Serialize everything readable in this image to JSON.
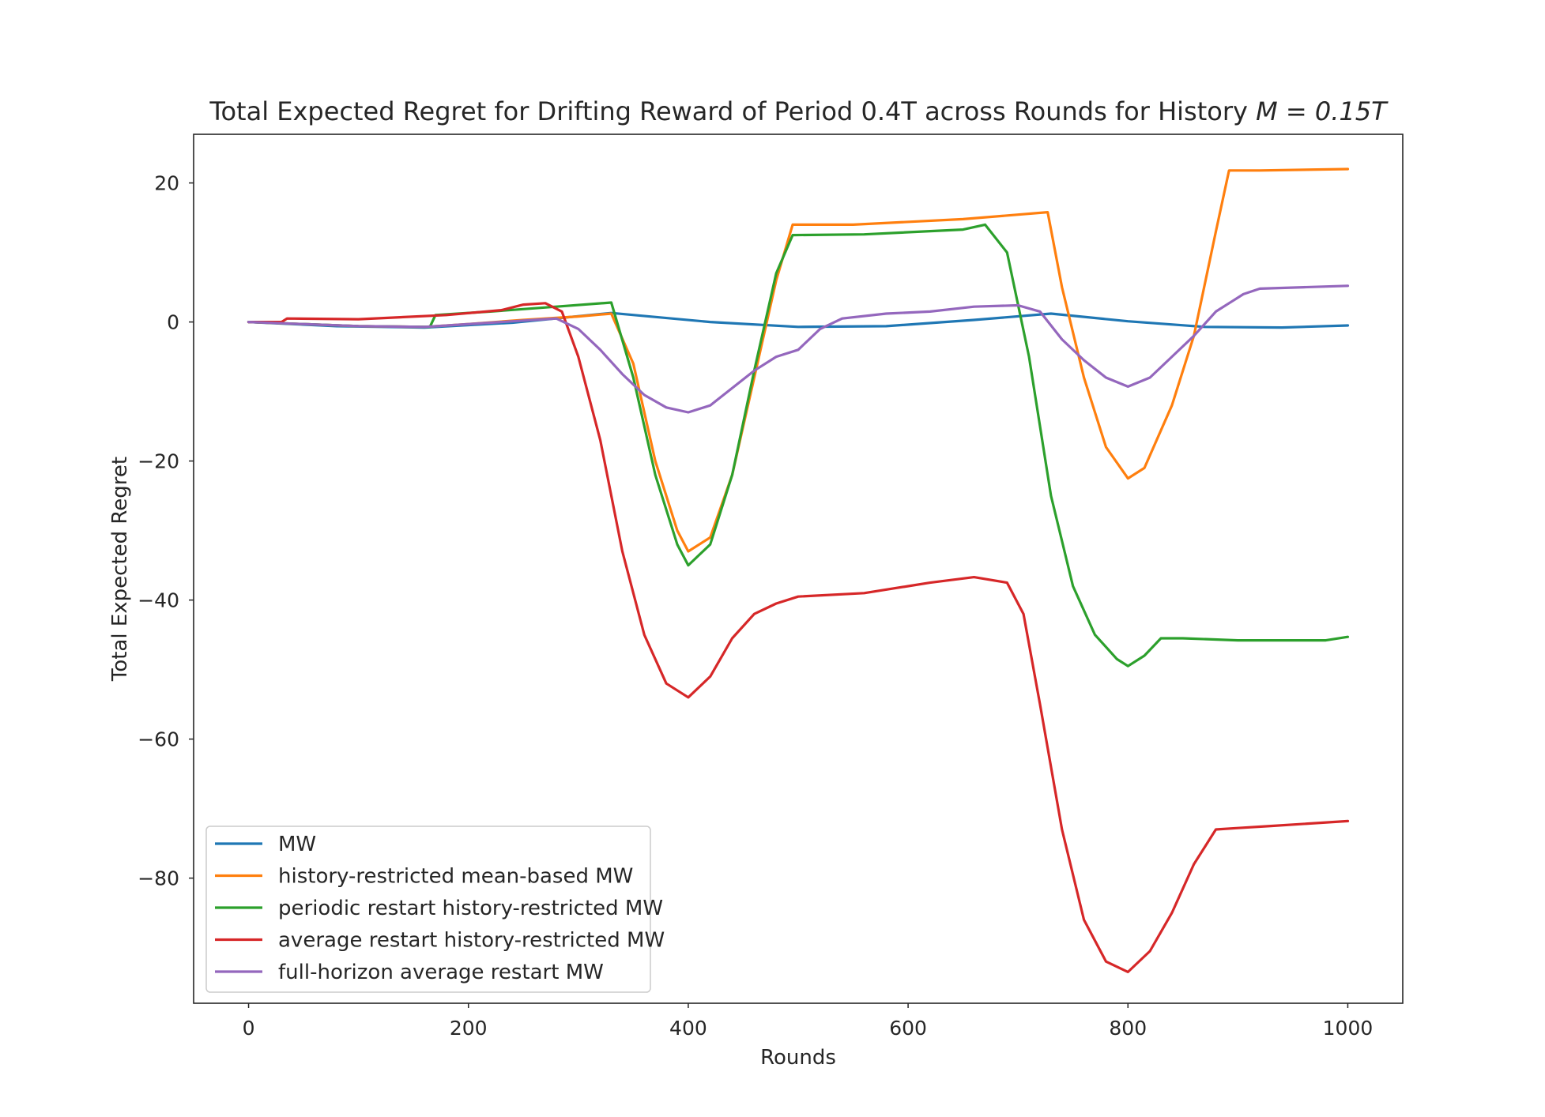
{
  "chart_data": {
    "type": "line",
    "title_prefix": "Total Expected Regret for Drifting Reward of Period 0.4T across Rounds for History",
    "title_math": "M = 0.15T",
    "xlabel": "Rounds",
    "ylabel": "Total Expected Regret",
    "xlim": [
      -50,
      1050
    ],
    "ylim": [
      -98,
      27
    ],
    "xticks": [
      0,
      200,
      400,
      600,
      800,
      1000
    ],
    "xtick_labels": [
      "0",
      "200",
      "400",
      "600",
      "800",
      "1000"
    ],
    "yticks": [
      20,
      0,
      -20,
      -40,
      -60,
      -80
    ],
    "ytick_labels": [
      "20",
      "0",
      "−20",
      "−40",
      "−60",
      "−80"
    ],
    "grid": false,
    "legend_position": "lower-left",
    "series": [
      {
        "name": "MW",
        "color": "#1f77b4",
        "x": [
          0,
          80,
          160,
          240,
          330,
          420,
          500,
          580,
          660,
          730,
          800,
          870,
          940,
          1000
        ],
        "values": [
          0,
          -0.6,
          -0.8,
          -0.1,
          1.3,
          0.0,
          -0.7,
          -0.6,
          0.3,
          1.2,
          0.1,
          -0.7,
          -0.8,
          -0.5
        ]
      },
      {
        "name": "history-restricted mean-based MW",
        "color": "#ff7f0e",
        "x": [
          0,
          100,
          160,
          200,
          250,
          300,
          330,
          350,
          370,
          390,
          400,
          420,
          440,
          460,
          480,
          495,
          550,
          650,
          727,
          740,
          760,
          780,
          800,
          815,
          840,
          860,
          880,
          892,
          920,
          1000
        ],
        "values": [
          0,
          -0.6,
          -0.7,
          -0.3,
          0.3,
          0.8,
          1.2,
          -6.0,
          -20.0,
          -30.0,
          -33.0,
          -31.0,
          -22.0,
          -8.0,
          6.0,
          14.0,
          14.0,
          14.8,
          15.8,
          5.0,
          -8.0,
          -18.0,
          -22.5,
          -21.0,
          -12.0,
          -2.0,
          13.0,
          21.8,
          21.8,
          22.0
        ]
      },
      {
        "name": "periodic restart history-restricted MW",
        "color": "#2ca02c",
        "x": [
          0,
          100,
          165,
          170,
          220,
          280,
          330,
          350,
          370,
          390,
          400,
          420,
          440,
          460,
          480,
          495,
          560,
          650,
          670,
          690,
          710,
          730,
          750,
          770,
          790,
          800,
          815,
          830,
          850,
          900,
          980,
          1000
        ],
        "values": [
          0,
          -0.6,
          -0.7,
          1.0,
          1.5,
          2.2,
          2.8,
          -8.0,
          -22.0,
          -32.0,
          -35.0,
          -32.0,
          -22.0,
          -7.0,
          7.0,
          12.5,
          12.6,
          13.3,
          14.0,
          10.0,
          -5.0,
          -25.0,
          -38.0,
          -45.0,
          -48.5,
          -49.5,
          -48.0,
          -45.5,
          -45.5,
          -45.8,
          -45.8,
          -45.3
        ]
      },
      {
        "name": "average restart history-restricted MW",
        "color": "#d62728",
        "x": [
          0,
          30,
          35,
          100,
          180,
          230,
          250,
          270,
          285,
          300,
          320,
          340,
          360,
          380,
          400,
          420,
          440,
          460,
          480,
          500,
          560,
          600,
          620,
          660,
          690,
          705,
          720,
          740,
          760,
          780,
          800,
          820,
          840,
          860,
          880,
          900,
          930,
          1000
        ],
        "values": [
          0,
          0,
          0.5,
          0.4,
          1.0,
          1.7,
          2.5,
          2.7,
          1.5,
          -5.0,
          -17.0,
          -33.0,
          -45.0,
          -52.0,
          -54.0,
          -51.0,
          -45.5,
          -42.0,
          -40.5,
          -39.5,
          -39.0,
          -38.0,
          -37.5,
          -36.7,
          -37.5,
          -42.0,
          -55.0,
          -73.0,
          -86.0,
          -92.0,
          -93.5,
          -90.5,
          -85.0,
          -78.0,
          -73.0,
          -72.8,
          -72.5,
          -71.8
        ]
      },
      {
        "name": "full-horizon average restart MW",
        "color": "#9467bd",
        "x": [
          0,
          100,
          160,
          220,
          280,
          300,
          320,
          340,
          360,
          380,
          400,
          420,
          440,
          460,
          480,
          500,
          520,
          540,
          580,
          620,
          660,
          700,
          720,
          740,
          760,
          780,
          800,
          820,
          840,
          860,
          880,
          895,
          905,
          920,
          960,
          1000
        ],
        "values": [
          0,
          -0.6,
          -0.7,
          -0.1,
          0.5,
          -1.0,
          -4.0,
          -7.5,
          -10.5,
          -12.3,
          -13.0,
          -12.0,
          -9.5,
          -7.0,
          -5.0,
          -4.0,
          -1.0,
          0.5,
          1.2,
          1.5,
          2.2,
          2.4,
          1.5,
          -2.5,
          -5.5,
          -8.0,
          -9.3,
          -8.0,
          -5.0,
          -2.0,
          1.5,
          3.0,
          4.0,
          4.8,
          5.0,
          5.2
        ]
      }
    ]
  }
}
